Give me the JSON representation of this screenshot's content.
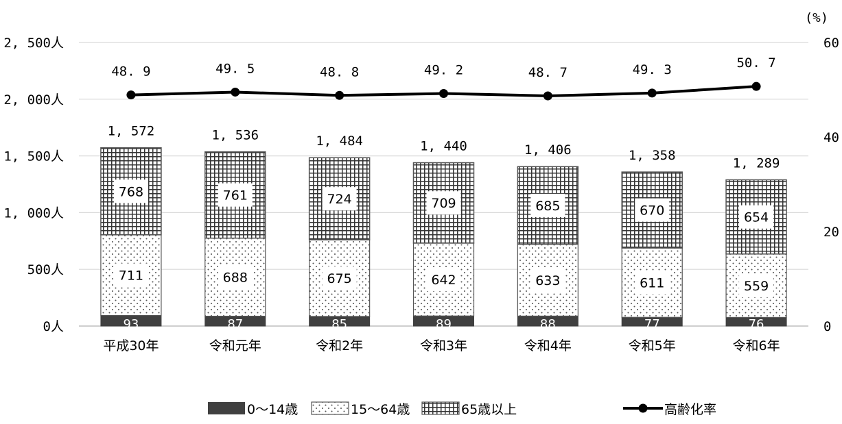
{
  "chart_data": {
    "type": "bar",
    "categories": [
      "平成30年",
      "令和元年",
      "令和2年",
      "令和3年",
      "令和4年",
      "令和5年",
      "令和6年"
    ],
    "series": [
      {
        "name": "0～14歳",
        "values": [
          93,
          87,
          85,
          89,
          88,
          77,
          76
        ]
      },
      {
        "name": "15～64歳",
        "values": [
          711,
          688,
          675,
          642,
          633,
          611,
          559
        ]
      },
      {
        "name": "65歳以上",
        "values": [
          768,
          761,
          724,
          709,
          685,
          670,
          654
        ]
      }
    ],
    "totals": [
      1572,
      1536,
      1484,
      1440,
      1406,
      1358,
      1289
    ],
    "totals_labels": [
      "1, 572",
      "1, 536",
      "1, 484",
      "1, 440",
      "1, 406",
      "1, 358",
      "1, 289"
    ],
    "line_series": {
      "name": "高齢化率",
      "values": [
        48.9,
        49.5,
        48.8,
        49.2,
        48.7,
        49.3,
        50.7
      ],
      "labels": [
        "48. 9",
        "49. 5",
        "48. 8",
        "49. 2",
        "48. 7",
        "49. 3",
        "50. 7"
      ]
    },
    "y_left": {
      "ylim": [
        0,
        2500
      ],
      "ticks": [
        0,
        500,
        1000,
        1500,
        2000,
        2500
      ],
      "tick_labels": [
        "0人",
        "500人",
        "1, 000人",
        "1, 500人",
        "2, 000人",
        "2, 500人"
      ]
    },
    "y_right": {
      "ylim": [
        0,
        60
      ],
      "ticks": [
        0,
        20,
        40,
        60
      ],
      "tick_labels": [
        "0",
        "20",
        "40",
        "60"
      ],
      "unit": "(%)"
    },
    "grid": true,
    "legend": {
      "position": "bottom",
      "items": [
        "0～14歳",
        "15～64歳",
        "65歳以上",
        "高齢化率"
      ]
    },
    "colors": {
      "young": "#404040",
      "border": "#555555",
      "grid": "#d9d9d9",
      "line": "#000000"
    }
  }
}
